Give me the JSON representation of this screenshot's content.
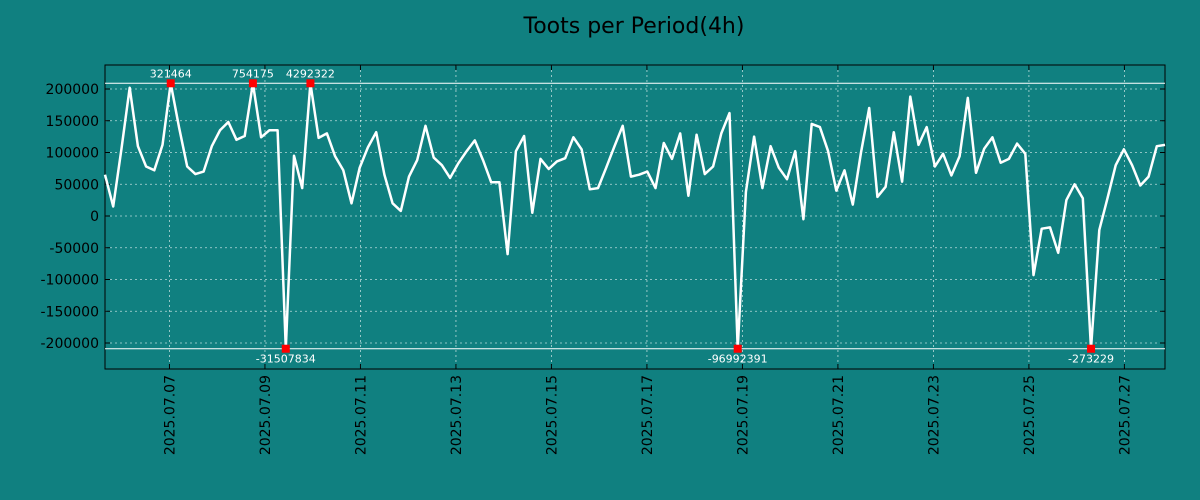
{
  "chart_data": {
    "type": "line",
    "title": "Toots per Period(4h)",
    "xlabel": "",
    "ylabel": "",
    "ylim": [
      -240000,
      240000
    ],
    "colors": {
      "background": "#108080",
      "line": "#ffffff",
      "marker": "#ff0000",
      "grid": "#ffffff"
    },
    "grid": true,
    "x_start_day": 5.65,
    "x_end_day": 27.85,
    "x_ticks": [
      {
        "day": 7,
        "label": "2025.07.07"
      },
      {
        "day": 9,
        "label": "2025.07.09"
      },
      {
        "day": 11,
        "label": "2025.07.11"
      },
      {
        "day": 13,
        "label": "2025.07.13"
      },
      {
        "day": 15,
        "label": "2025.07.15"
      },
      {
        "day": 17,
        "label": "2025.07.17"
      },
      {
        "day": 19,
        "label": "2025.07.19"
      },
      {
        "day": 21,
        "label": "2025.07.21"
      },
      {
        "day": 23,
        "label": "2025.07.23"
      },
      {
        "day": 25,
        "label": "2025.07.25"
      },
      {
        "day": 27,
        "label": "2025.07.27"
      }
    ],
    "y_ticks": [
      {
        "value": 200000,
        "label": "200000"
      },
      {
        "value": 150000,
        "label": "150000"
      },
      {
        "value": 100000,
        "label": "100000"
      },
      {
        "value": 50000,
        "label": "50000"
      },
      {
        "value": 0,
        "label": "0"
      },
      {
        "value": -50000,
        "label": "-50000"
      },
      {
        "value": -100000,
        "label": "-100000"
      },
      {
        "value": -150000,
        "label": "-150000"
      },
      {
        "value": -200000,
        "label": "-200000"
      }
    ],
    "clip_top": 209000,
    "clip_bottom": -209000,
    "values": [
      65000,
      15000,
      105000,
      202000,
      110000,
      78000,
      72000,
      112000,
      209000,
      140000,
      78000,
      66000,
      70000,
      110000,
      135000,
      148000,
      120000,
      126000,
      209000,
      124000,
      135000,
      135000,
      -209000,
      95000,
      44000,
      209000,
      123000,
      130000,
      94000,
      72000,
      20000,
      76000,
      108000,
      132000,
      65000,
      20000,
      8000,
      62000,
      88000,
      142000,
      92000,
      80000,
      60000,
      83000,
      102000,
      119000,
      88000,
      53000,
      53000,
      -60000,
      102000,
      126000,
      5000,
      90000,
      74000,
      86000,
      91000,
      124000,
      105000,
      42000,
      44000,
      76000,
      110000,
      142000,
      62000,
      65000,
      70000,
      44000,
      115000,
      90000,
      130000,
      32000,
      128000,
      66000,
      78000,
      130000,
      162000,
      -209000,
      38000,
      125000,
      44000,
      110000,
      76000,
      58000,
      102000,
      -5000,
      145000,
      140000,
      102000,
      40000,
      72000,
      18000,
      100000,
      170000,
      30000,
      46000,
      132000,
      54000,
      188000,
      112000,
      140000,
      78000,
      98000,
      64000,
      94000,
      186000,
      68000,
      106000,
      124000,
      84000,
      90000,
      114000,
      98000,
      -93000,
      -20000,
      -18000,
      -58000,
      25000,
      50000,
      28000,
      -209000,
      -22000,
      28000,
      80000,
      105000,
      80000,
      48000,
      62000,
      110000,
      112000
    ],
    "annotations": [
      {
        "index": 8,
        "label": "321464",
        "position": "above"
      },
      {
        "index": 18,
        "label": "754175",
        "position": "above"
      },
      {
        "index": 25,
        "label": "4292322",
        "position": "above"
      },
      {
        "index": 22,
        "label": "-31507834",
        "position": "below"
      },
      {
        "index": 77,
        "label": "-96992391",
        "position": "below"
      },
      {
        "index": 120,
        "label": "-273229",
        "position": "below"
      }
    ]
  }
}
